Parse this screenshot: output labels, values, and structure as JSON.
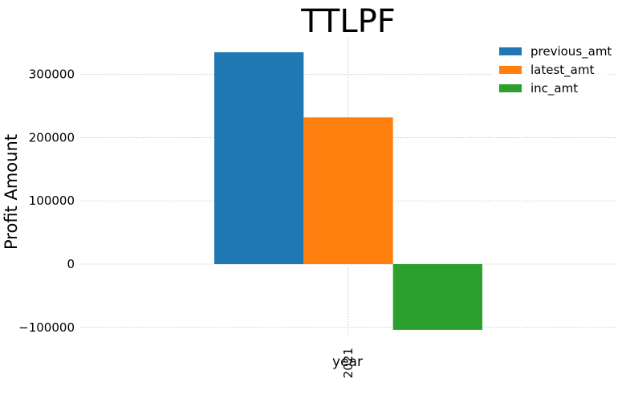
{
  "chart_data": {
    "type": "bar",
    "title": "TTLPF",
    "xlabel": "year",
    "ylabel": "Profit Amount",
    "categories": [
      "2021"
    ],
    "series": [
      {
        "name": "previous_amt",
        "values": [
          335000
        ],
        "color": "#1f77b4"
      },
      {
        "name": "latest_amt",
        "values": [
          232000
        ],
        "color": "#ff7f0e"
      },
      {
        "name": "inc_amt",
        "values": [
          -104000
        ],
        "color": "#2ca02c"
      }
    ],
    "ylim": [
      -113000,
      358000
    ],
    "yticks": [
      -100000,
      0,
      100000,
      200000,
      300000
    ],
    "ytick_labels": [
      "−100000",
      "0",
      "100000",
      "200000",
      "300000"
    ],
    "grid": true,
    "legend_position": "top-right"
  }
}
